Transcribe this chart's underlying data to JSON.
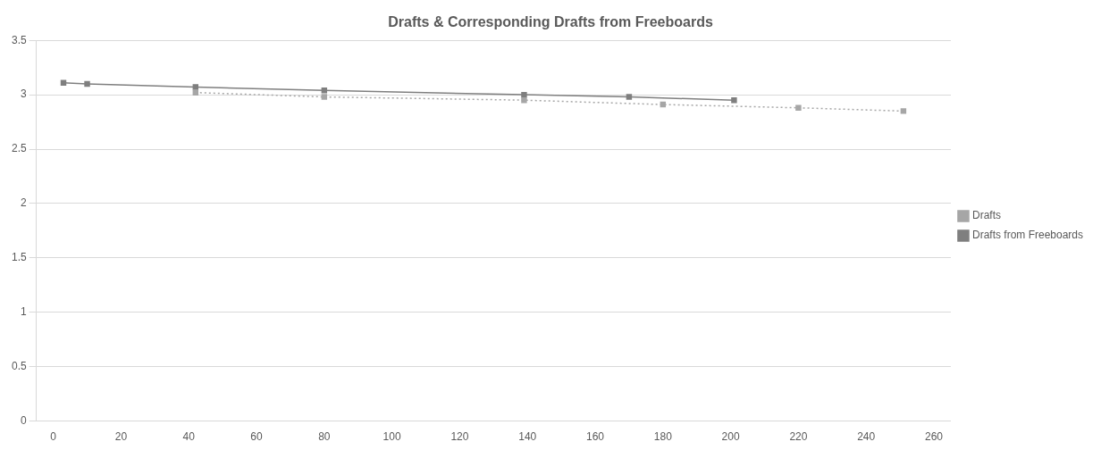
{
  "chart_data": {
    "type": "line",
    "title": "Drafts & Corresponding Drafts from Freeboards",
    "xlim": [
      -5,
      265
    ],
    "xticks": [
      0,
      20,
      40,
      60,
      80,
      100,
      120,
      140,
      160,
      180,
      200,
      220,
      240,
      260
    ],
    "ylim": [
      0,
      3.5
    ],
    "yticks": [
      0,
      0.5,
      1,
      1.5,
      2,
      2.5,
      3,
      3.5
    ],
    "grid": "y",
    "legend": "right",
    "marker": "square",
    "series": [
      {
        "name": "Drafts",
        "color": "#a6a6a6",
        "line_style": "dotted",
        "x": [
          42,
          80,
          139,
          180,
          220,
          251
        ],
        "values": [
          3.02,
          2.98,
          2.95,
          2.91,
          2.88,
          2.85
        ]
      },
      {
        "name": "Drafts from Freeboards",
        "color": "#7f7f7f",
        "line_style": "solid",
        "x": [
          3,
          10,
          42,
          80,
          139,
          170,
          201
        ],
        "values": [
          3.11,
          3.1,
          3.07,
          3.04,
          3.0,
          2.98,
          2.95
        ]
      }
    ]
  }
}
